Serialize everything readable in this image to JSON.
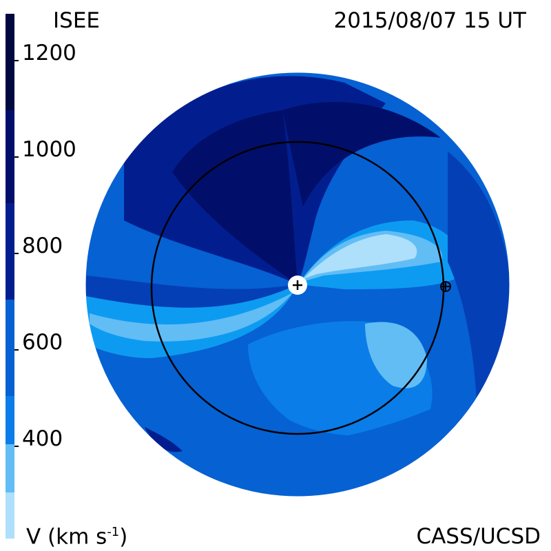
{
  "header": {
    "model": "ISEE",
    "datetime": "2015/08/07 15 UT"
  },
  "footer": {
    "quantity_label": "V (km s",
    "quantity_exponent": "-1",
    "quantity_close": ")",
    "credit": "CASS/UCSD"
  },
  "colorbar": {
    "ticks": [
      "1200",
      "1000",
      "800",
      "600",
      "400"
    ],
    "colors": [
      "#aee0fb",
      "#62bdf5",
      "#0d9bf2",
      "#0a7de8",
      "#0661d3",
      "#043fb6",
      "#021e8e",
      "#010f6a",
      "#000840"
    ]
  },
  "map": {
    "sun_marker": "sun-plus",
    "earth_marker": "earth-symbol",
    "orbit": "earth-orbit"
  }
}
